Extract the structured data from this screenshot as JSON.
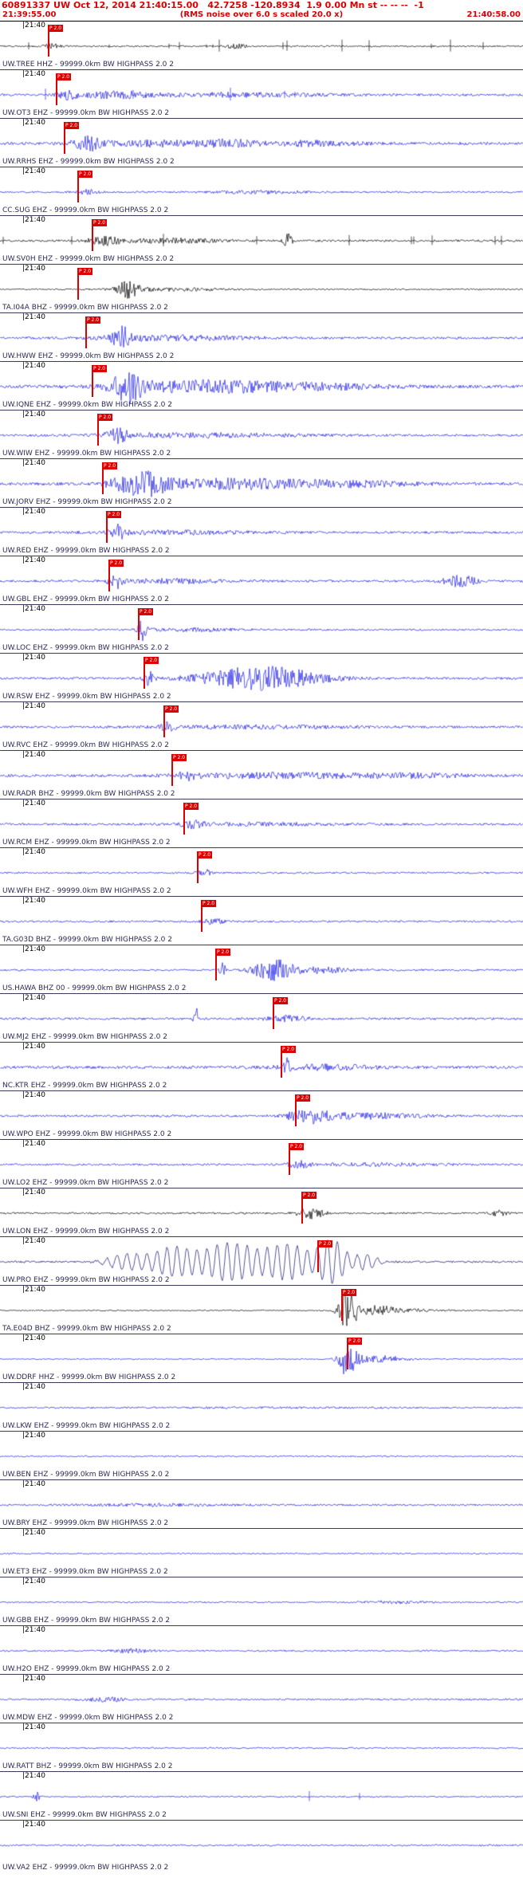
{
  "header": {
    "line1": "60891337 UW Oct 12, 2014 21:40:15.00   42.7258 -120.8934  1.9 0.00 Mn st -- -- --  -1",
    "start_time": "21:39:55.00",
    "note": "(RMS noise over 6.0 s scaled 20.0 x)",
    "end_time": "21:40:58.00",
    "text_color": "#dd0000"
  },
  "traces": {
    "tick_label": "|21:40",
    "label_suffix": " - 99999.0km BW HIGHPASS 2.0 2",
    "pick_color": "#dd0000",
    "pick_label": "P 2.0",
    "default_blue": "#1a1ae6",
    "rows": [
      {
        "station": "UW.TREE HHZ",
        "color": "#000000",
        "noise": 1.0,
        "spikes": 14,
        "bursts": [
          {
            "p": 0.1,
            "w": 0.015,
            "a": 3
          },
          {
            "p": 0.45,
            "w": 0.02,
            "a": 2.5
          }
        ],
        "pick": 0.091
      },
      {
        "station": "UW.OT3 EHZ",
        "color": "#1a1ae6",
        "noise": 1.4,
        "spikes": 6,
        "bursts": [
          {
            "p": 0.13,
            "w": 0.02,
            "a": 5
          },
          {
            "p": 0.22,
            "w": 0.06,
            "a": 4
          },
          {
            "p": 0.45,
            "w": 0.18,
            "a": 2.2
          }
        ],
        "pick": 0.107
      },
      {
        "station": "UW.RRHS EHZ",
        "color": "#1a1ae6",
        "noise": 1.8,
        "bursts": [
          {
            "p": 0.17,
            "w": 0.03,
            "a": 8
          },
          {
            "p": 0.3,
            "w": 0.1,
            "a": 3.5
          },
          {
            "p": 0.44,
            "w": 0.05,
            "a": 4
          },
          {
            "p": 0.6,
            "w": 0.08,
            "a": 3
          }
        ],
        "pick": 0.122
      },
      {
        "station": "CC.SUG EHZ",
        "color": "#1a1ae6",
        "noise": 1.1,
        "bursts": [
          {
            "p": 0.17,
            "w": 0.02,
            "a": 3
          },
          {
            "p": 0.5,
            "w": 0.08,
            "a": 1.8
          }
        ],
        "pick": 0.148
      },
      {
        "station": "UW.SV0H EHZ",
        "color": "#000000",
        "noise": 1.3,
        "spikes": 10,
        "bursts": [
          {
            "p": 0.2,
            "w": 0.03,
            "a": 5
          },
          {
            "p": 0.33,
            "w": 0.1,
            "a": 2.5
          },
          {
            "p": 0.55,
            "w": 0.008,
            "a": 9
          }
        ],
        "pick": 0.175
      },
      {
        "station": "TA.I04A BHZ",
        "color": "#000000",
        "noise": 0.9,
        "bursts": [
          {
            "p": 0.245,
            "w": 0.02,
            "a": 10
          },
          {
            "p": 0.32,
            "w": 0.1,
            "a": 2
          }
        ],
        "pick": 0.148
      },
      {
        "station": "UW.HWW EHZ",
        "color": "#1a1ae6",
        "noise": 1.4,
        "bursts": [
          {
            "p": 0.235,
            "w": 0.02,
            "a": 13
          },
          {
            "p": 0.33,
            "w": 0.15,
            "a": 3
          }
        ],
        "pick": 0.163
      },
      {
        "station": "UW.IQNE EHZ",
        "color": "#1a1ae6",
        "noise": 1.8,
        "bursts": [
          {
            "p": 0.245,
            "w": 0.03,
            "a": 17
          },
          {
            "p": 0.38,
            "w": 0.15,
            "a": 7
          },
          {
            "p": 0.6,
            "w": 0.15,
            "a": 3.5
          }
        ],
        "pick": 0.175
      },
      {
        "station": "UW.WIW EHZ",
        "color": "#1a1ae6",
        "noise": 1.4,
        "bursts": [
          {
            "p": 0.225,
            "w": 0.018,
            "a": 9
          },
          {
            "p": 0.38,
            "w": 0.2,
            "a": 2.5
          }
        ],
        "pick": 0.186
      },
      {
        "station": "UW.JORV EHZ",
        "color": "#1a1ae6",
        "noise": 1.8,
        "bursts": [
          {
            "p": 0.27,
            "w": 0.05,
            "a": 15
          },
          {
            "p": 0.45,
            "w": 0.15,
            "a": 6
          },
          {
            "p": 0.68,
            "w": 0.12,
            "a": 3
          }
        ],
        "pick": 0.195
      },
      {
        "station": "UW.RED EHZ",
        "color": "#1a1ae6",
        "noise": 1.4,
        "bursts": [
          {
            "p": 0.225,
            "w": 0.015,
            "a": 9
          },
          {
            "p": 0.35,
            "w": 0.15,
            "a": 2.2
          }
        ],
        "pick": 0.203
      },
      {
        "station": "UW.GBL EHZ",
        "color": "#1a1ae6",
        "noise": 1.4,
        "bursts": [
          {
            "p": 0.22,
            "w": 0.012,
            "a": 11
          },
          {
            "p": 0.33,
            "w": 0.1,
            "a": 2.5
          },
          {
            "p": 0.88,
            "w": 0.03,
            "a": 7
          }
        ],
        "pick": 0.207
      },
      {
        "station": "UW.LOC EHZ",
        "color": "#1a1ae6",
        "noise": 1.1,
        "bursts": [
          {
            "p": 0.272,
            "w": 0.008,
            "a": 13
          },
          {
            "p": 0.36,
            "w": 0.1,
            "a": 1.8
          }
        ],
        "pick": 0.264
      },
      {
        "station": "UW.RSW EHZ",
        "color": "#1a1ae6",
        "noise": 1.4,
        "bursts": [
          {
            "p": 0.285,
            "w": 0.01,
            "a": 9
          },
          {
            "p": 0.5,
            "w": 0.11,
            "a": 15
          }
        ],
        "pick": 0.274
      },
      {
        "station": "UW.RVC EHZ",
        "color": "#1a1ae6",
        "noise": 1.4,
        "bursts": [
          {
            "p": 0.32,
            "w": 0.015,
            "a": 5
          },
          {
            "p": 0.5,
            "w": 0.2,
            "a": 1.8
          }
        ],
        "pick": 0.313
      },
      {
        "station": "UW.RADR BHZ",
        "color": "#1a1ae6",
        "noise": 1.6,
        "bursts": [
          {
            "p": 0.36,
            "w": 0.02,
            "a": 5
          },
          {
            "p": 0.55,
            "w": 0.2,
            "a": 3
          },
          {
            "p": 0.8,
            "w": 0.1,
            "a": 2
          }
        ],
        "pick": 0.328
      },
      {
        "station": "UW.RCM EHZ",
        "color": "#1a1ae6",
        "noise": 1.4,
        "bursts": [
          {
            "p": 0.37,
            "w": 0.02,
            "a": 4.5
          },
          {
            "p": 0.5,
            "w": 0.15,
            "a": 1.5
          }
        ],
        "pick": 0.351
      },
      {
        "station": "UW.WFH EHZ",
        "color": "#1a1ae6",
        "noise": 1.1,
        "bursts": [
          {
            "p": 0.39,
            "w": 0.012,
            "a": 4.5
          }
        ],
        "pick": 0.377
      },
      {
        "station": "TA.G03D BHZ",
        "color": "#1a1ae6",
        "noise": 1.2,
        "bursts": [
          {
            "p": 0.41,
            "w": 0.02,
            "a": 3.5
          }
        ],
        "pick": 0.384
      },
      {
        "station": "US.HAWA BHZ 00",
        "color": "#1a1ae6",
        "noise": 1.1,
        "bursts": [
          {
            "p": 0.425,
            "w": 0.006,
            "a": 10
          },
          {
            "p": 0.52,
            "w": 0.035,
            "a": 13
          },
          {
            "p": 0.6,
            "w": 0.08,
            "a": 3.5
          }
        ],
        "pick": 0.412
      },
      {
        "station": "UW.MJ2 EHZ",
        "color": "#1a1ae6",
        "noise": 1.4,
        "bursts": [
          {
            "p": 0.375,
            "w": 0.004,
            "a": 18
          },
          {
            "p": 0.55,
            "w": 0.04,
            "a": 3.5
          }
        ],
        "pick": 0.521
      },
      {
        "station": "NC.KTR EHZ",
        "color": "#1a1ae6",
        "noise": 1.7,
        "bursts": [
          {
            "p": 0.548,
            "w": 0.006,
            "a": 11
          },
          {
            "p": 0.62,
            "w": 0.1,
            "a": 3
          }
        ],
        "pick": 0.537
      },
      {
        "station": "UW.WPO EHZ",
        "color": "#1a1ae6",
        "noise": 1.4,
        "bursts": [
          {
            "p": 0.59,
            "w": 0.04,
            "a": 8
          },
          {
            "p": 0.7,
            "w": 0.1,
            "a": 3.5
          }
        ],
        "pick": 0.564
      },
      {
        "station": "UW.LO2 EHZ",
        "color": "#1a1ae6",
        "noise": 1.2,
        "bursts": [
          {
            "p": 0.57,
            "w": 0.02,
            "a": 5
          },
          {
            "p": 0.72,
            "w": 0.12,
            "a": 1.8
          }
        ],
        "pick": 0.552
      },
      {
        "station": "UW.LON EHZ",
        "color": "#000000",
        "noise": 1.1,
        "bursts": [
          {
            "p": 0.595,
            "w": 0.025,
            "a": 7
          },
          {
            "p": 0.95,
            "w": 0.02,
            "a": 3.5
          }
        ],
        "pick": 0.576
      },
      {
        "station": "UW.PRO EHZ",
        "color": "#0d0d66",
        "wave": "sine",
        "noise": 1.2,
        "bursts": [
          {
            "p": 0.24,
            "w": 0.04,
            "a": 10
          },
          {
            "p": 0.33,
            "w": 0.05,
            "a": 18
          },
          {
            "p": 0.44,
            "w": 0.06,
            "a": 24
          },
          {
            "p": 0.55,
            "w": 0.05,
            "a": 22
          },
          {
            "p": 0.635,
            "w": 0.03,
            "a": 27
          },
          {
            "p": 0.7,
            "w": 0.025,
            "a": 10
          }
        ],
        "pick": 0.607
      },
      {
        "station": "TA.E04D BHZ",
        "color": "#000000",
        "noise": 0.7,
        "bursts": [
          {
            "p": 0.665,
            "w": 0.018,
            "a": 26
          },
          {
            "p": 0.72,
            "w": 0.04,
            "a": 5
          },
          {
            "p": 0.78,
            "w": 0.08,
            "a": 1.5
          }
        ],
        "pick": 0.652
      },
      {
        "station": "UW.DDRF HHZ",
        "color": "#1a1ae6",
        "noise": 0.7,
        "bursts": [
          {
            "p": 0.665,
            "w": 0.018,
            "a": 24
          },
          {
            "p": 0.73,
            "w": 0.05,
            "a": 4
          }
        ],
        "pick": 0.663
      },
      {
        "station": "UW.LKW EHZ",
        "color": "#1a1ae6",
        "noise": 0.9,
        "bursts": [
          {
            "p": 0.5,
            "w": 0.3,
            "a": 0.5
          }
        ]
      },
      {
        "station": "UW.BEN EHZ",
        "color": "#1a1ae6",
        "noise": 0.9,
        "bursts": []
      },
      {
        "station": "UW.BRY EHZ",
        "color": "#1a1ae6",
        "noise": 1.1,
        "bursts": [
          {
            "p": 0.3,
            "w": 0.15,
            "a": 1.2
          }
        ]
      },
      {
        "station": "UW.ET3 EHZ",
        "color": "#1a1ae6",
        "noise": 0.9,
        "bursts": []
      },
      {
        "station": "UW.GBB EHZ",
        "color": "#1a1ae6",
        "noise": 0.9,
        "bursts": [
          {
            "p": 0.75,
            "w": 0.06,
            "a": 1.5
          }
        ]
      },
      {
        "station": "UW.H2O EHZ",
        "color": "#1a1ae6",
        "noise": 1.0,
        "bursts": [
          {
            "p": 0.25,
            "w": 0.04,
            "a": 2.2
          }
        ]
      },
      {
        "station": "UW.MDW EHZ",
        "color": "#1a1ae6",
        "noise": 1.1,
        "bursts": [
          {
            "p": 0.2,
            "w": 0.04,
            "a": 2.8
          }
        ]
      },
      {
        "station": "UW.RATT BHZ",
        "color": "#1a1ae6",
        "noise": 0.9,
        "bursts": []
      },
      {
        "station": "UW.SNI EHZ",
        "color": "#1a1ae6",
        "noise": 0.9,
        "spikes": 2,
        "bursts": [
          {
            "p": 0.07,
            "w": 0.006,
            "a": 6
          }
        ]
      },
      {
        "station": "UW.VA2 EHZ",
        "color": "#1a1ae6",
        "noise": 1.1,
        "bursts": []
      }
    ]
  }
}
